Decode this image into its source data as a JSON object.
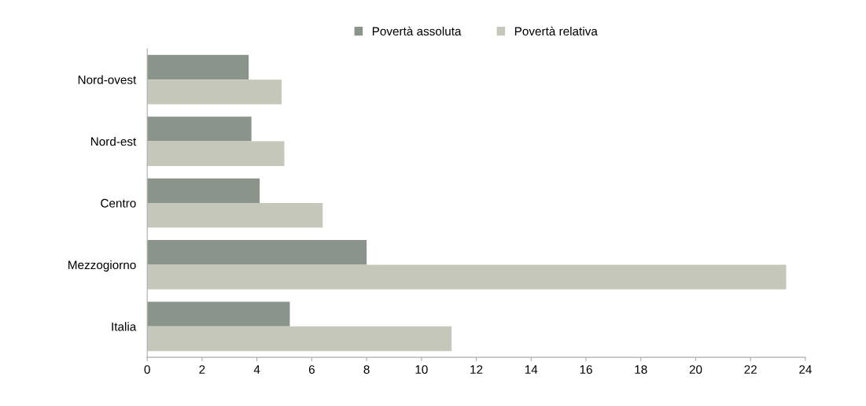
{
  "chart_data": {
    "type": "bar",
    "orientation": "horizontal",
    "categories": [
      "Nord-ovest",
      "Nord-est",
      "Centro",
      "Mezzogiorno",
      "Italia"
    ],
    "series": [
      {
        "name": "Povertà assoluta",
        "color": "#8a948b",
        "values": [
          3.7,
          3.8,
          4.1,
          8.0,
          5.2
        ]
      },
      {
        "name": "Povertà relativa",
        "color": "#c6c7bb",
        "values": [
          4.9,
          5.0,
          6.4,
          23.3,
          11.1
        ]
      }
    ],
    "xlim": [
      0,
      24
    ],
    "xticks": [
      0,
      2,
      4,
      6,
      8,
      10,
      12,
      14,
      16,
      18,
      20,
      22,
      24
    ],
    "grid": false,
    "legend": "top"
  }
}
